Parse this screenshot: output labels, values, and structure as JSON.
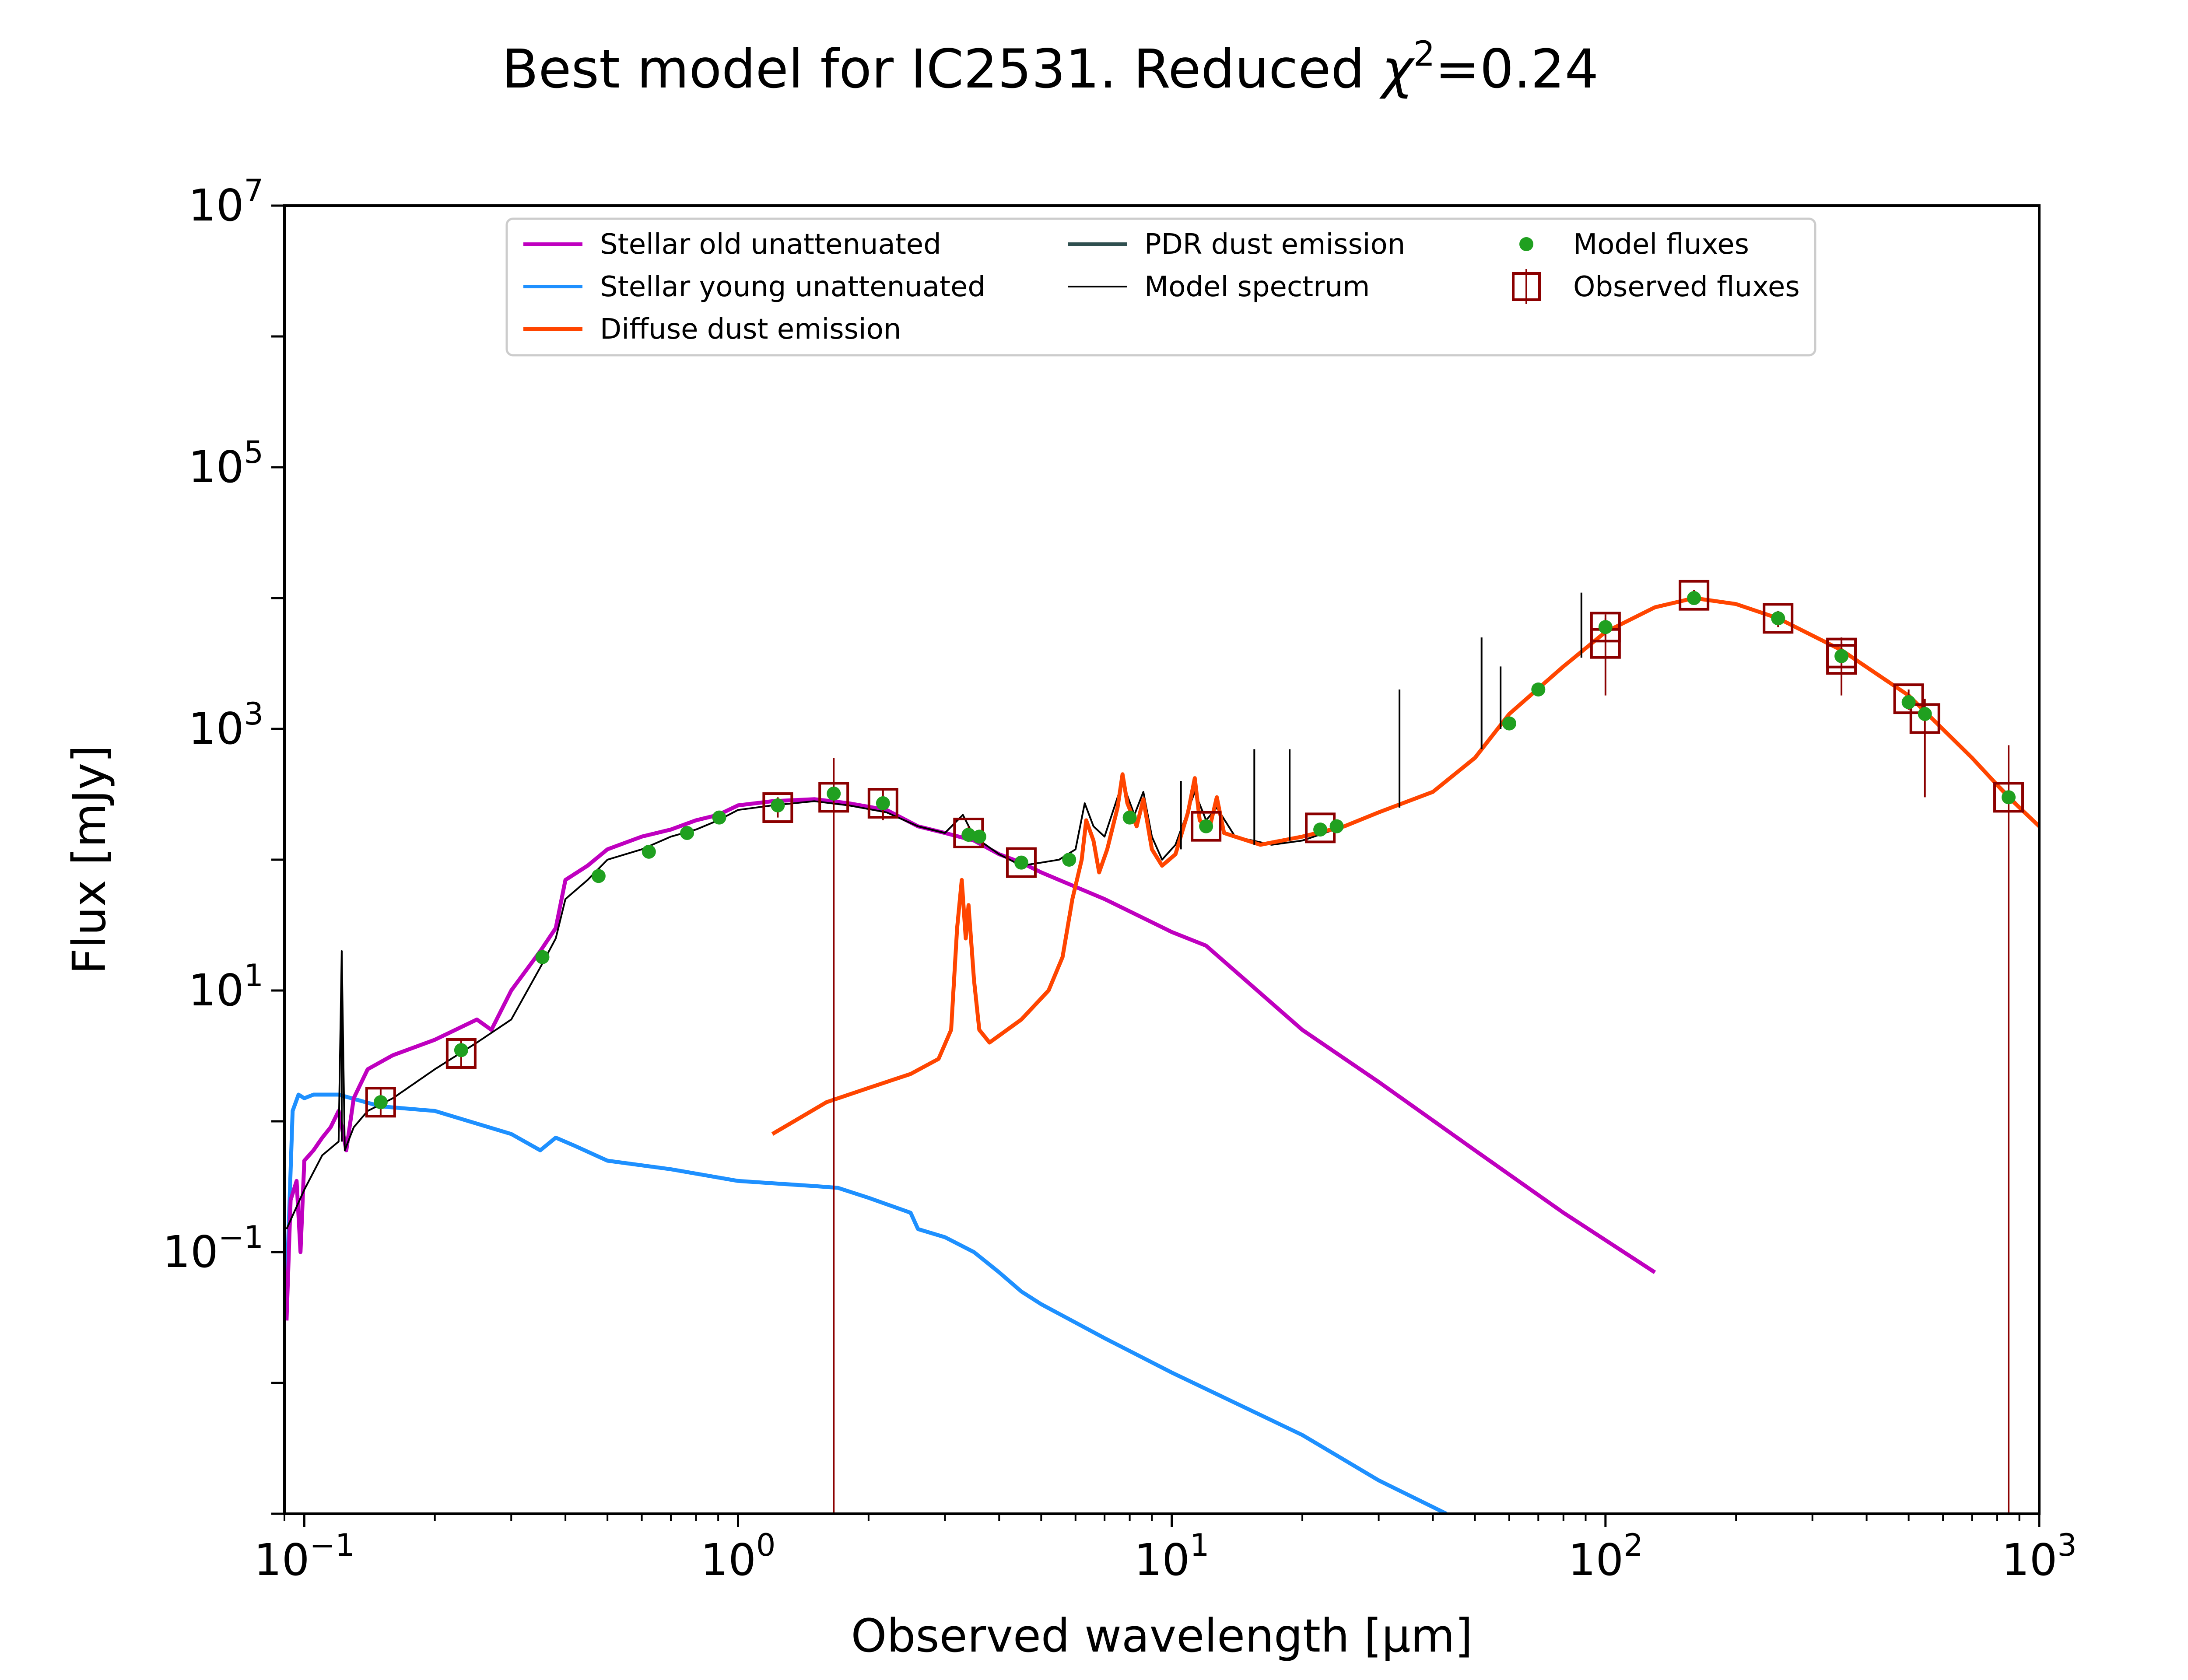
{
  "chart_data": {
    "type": "line",
    "title_prefix": "Best model for IC2531. Reduced ",
    "title_chi": "χ",
    "title_sup": "2",
    "title_suffix": "=0.24",
    "xlabel": "Observed wavelength [μm]",
    "ylabel": "Flux [mJy]",
    "x_scale": "log",
    "y_scale": "log",
    "xlim": [
      0.09,
      1000
    ],
    "ylim": [
      0.001,
      10000000
    ],
    "grid": false,
    "legend_position": "top-center",
    "x_ticks": [
      {
        "base": "10",
        "exp": "−1",
        "value": 0.1
      },
      {
        "base": "10",
        "exp": "0",
        "value": 1
      },
      {
        "base": "10",
        "exp": "1",
        "value": 10
      },
      {
        "base": "10",
        "exp": "2",
        "value": 100
      },
      {
        "base": "10",
        "exp": "3",
        "value": 1000
      }
    ],
    "y_ticks": [
      {
        "base": "10",
        "exp": "−1",
        "value": 0.1
      },
      {
        "base": "10",
        "exp": "1",
        "value": 10
      },
      {
        "base": "10",
        "exp": "3",
        "value": 1000
      },
      {
        "base": "10",
        "exp": "5",
        "value": 100000
      },
      {
        "base": "10",
        "exp": "7",
        "value": 10000000
      }
    ],
    "series": [
      {
        "name": "Stellar old unattenuated",
        "color": "#bf00bf",
        "kind": "line",
        "points": [
          [
            0.091,
            0.03
          ],
          [
            0.093,
            0.25
          ],
          [
            0.096,
            0.35
          ],
          [
            0.098,
            0.1
          ],
          [
            0.1,
            0.5
          ],
          [
            0.105,
            0.6
          ],
          [
            0.11,
            0.75
          ],
          [
            0.115,
            0.9
          ],
          [
            0.12,
            1.2
          ],
          [
            0.125,
            0.6
          ],
          [
            0.13,
            1.5
          ],
          [
            0.14,
            2.5
          ],
          [
            0.16,
            3.2
          ],
          [
            0.2,
            4.2
          ],
          [
            0.25,
            6
          ],
          [
            0.27,
            5
          ],
          [
            0.3,
            10
          ],
          [
            0.35,
            20
          ],
          [
            0.38,
            30
          ],
          [
            0.4,
            70
          ],
          [
            0.45,
            90
          ],
          [
            0.5,
            120
          ],
          [
            0.6,
            150
          ],
          [
            0.7,
            170
          ],
          [
            0.8,
            200
          ],
          [
            0.9,
            220
          ],
          [
            1.0,
            260
          ],
          [
            1.2,
            280
          ],
          [
            1.5,
            290
          ],
          [
            1.8,
            270
          ],
          [
            2.2,
            240
          ],
          [
            2.6,
            180
          ],
          [
            3.0,
            160
          ],
          [
            3.5,
            140
          ],
          [
            4.0,
            110
          ],
          [
            4.5,
            95
          ],
          [
            5,
            80
          ],
          [
            7,
            50
          ],
          [
            10,
            28
          ],
          [
            12,
            22
          ],
          [
            20,
            5
          ],
          [
            30,
            2
          ],
          [
            50,
            0.6
          ],
          [
            80,
            0.2
          ],
          [
            130,
            0.07
          ]
        ]
      },
      {
        "name": "Stellar young unattenuated",
        "color": "#1e90ff",
        "kind": "line",
        "points": [
          [
            0.091,
            0.05
          ],
          [
            0.094,
            1.2
          ],
          [
            0.097,
            1.6
          ],
          [
            0.1,
            1.5
          ],
          [
            0.105,
            1.6
          ],
          [
            0.12,
            1.6
          ],
          [
            0.15,
            1.3
          ],
          [
            0.2,
            1.2
          ],
          [
            0.3,
            0.8
          ],
          [
            0.35,
            0.6
          ],
          [
            0.38,
            0.75
          ],
          [
            0.42,
            0.65
          ],
          [
            0.5,
            0.5
          ],
          [
            0.7,
            0.43
          ],
          [
            1.0,
            0.35
          ],
          [
            1.5,
            0.32
          ],
          [
            1.7,
            0.31
          ],
          [
            2.0,
            0.26
          ],
          [
            2.5,
            0.2
          ],
          [
            2.6,
            0.15
          ],
          [
            3.0,
            0.13
          ],
          [
            3.5,
            0.1
          ],
          [
            4.0,
            0.07
          ],
          [
            4.5,
            0.05
          ],
          [
            5,
            0.04
          ],
          [
            7,
            0.022
          ],
          [
            10,
            0.012
          ],
          [
            20,
            0.004
          ],
          [
            30,
            0.0018
          ],
          [
            43,
            0.001
          ]
        ]
      },
      {
        "name": "Diffuse dust emission",
        "color": "#ff4500",
        "kind": "line",
        "points": [
          [
            1.2,
            0.8
          ],
          [
            1.6,
            1.4
          ],
          [
            2.0,
            1.8
          ],
          [
            2.5,
            2.3
          ],
          [
            2.9,
            3
          ],
          [
            3.1,
            5
          ],
          [
            3.2,
            30
          ],
          [
            3.28,
            70
          ],
          [
            3.35,
            25
          ],
          [
            3.4,
            45
          ],
          [
            3.5,
            12
          ],
          [
            3.6,
            5
          ],
          [
            3.8,
            4
          ],
          [
            4.5,
            6
          ],
          [
            5.2,
            10
          ],
          [
            5.6,
            18
          ],
          [
            5.9,
            50
          ],
          [
            6.2,
            100
          ],
          [
            6.35,
            200
          ],
          [
            6.6,
            140
          ],
          [
            6.8,
            80
          ],
          [
            7.1,
            120
          ],
          [
            7.5,
            250
          ],
          [
            7.7,
            450
          ],
          [
            7.9,
            270
          ],
          [
            8.3,
            180
          ],
          [
            8.6,
            290
          ],
          [
            9,
            120
          ],
          [
            9.5,
            90
          ],
          [
            10.2,
            110
          ],
          [
            10.9,
            230
          ],
          [
            11.3,
            420
          ],
          [
            11.6,
            200
          ],
          [
            12.2,
            170
          ],
          [
            12.7,
            300
          ],
          [
            13.2,
            160
          ],
          [
            14,
            150
          ],
          [
            16,
            130
          ],
          [
            20,
            150
          ],
          [
            25,
            180
          ],
          [
            30,
            230
          ],
          [
            40,
            330
          ],
          [
            50,
            600
          ],
          [
            60,
            1300
          ],
          [
            80,
            3000
          ],
          [
            100,
            5500
          ],
          [
            130,
            8500
          ],
          [
            160,
            10000
          ],
          [
            200,
            9000
          ],
          [
            250,
            7000
          ],
          [
            350,
            4000
          ],
          [
            500,
            1800
          ],
          [
            700,
            600
          ],
          [
            850,
            300
          ],
          [
            1000,
            180
          ]
        ]
      },
      {
        "name": "PDR dust emission",
        "color": "#2f4f4f",
        "kind": "line",
        "points": []
      },
      {
        "name": "Model spectrum",
        "color": "#000000",
        "kind": "line",
        "points": [
          [
            0.091,
            0.15
          ],
          [
            0.1,
            0.3
          ],
          [
            0.11,
            0.55
          ],
          [
            0.12,
            0.7
          ],
          [
            0.122,
            20
          ],
          [
            0.124,
            0.6
          ],
          [
            0.13,
            0.9
          ],
          [
            0.14,
            1.2
          ],
          [
            0.16,
            1.5
          ],
          [
            0.2,
            2.5
          ],
          [
            0.25,
            4
          ],
          [
            0.3,
            6
          ],
          [
            0.35,
            15
          ],
          [
            0.38,
            25
          ],
          [
            0.4,
            50
          ],
          [
            0.45,
            70
          ],
          [
            0.5,
            100
          ],
          [
            0.6,
            120
          ],
          [
            0.7,
            150
          ],
          [
            0.8,
            170
          ],
          [
            0.9,
            200
          ],
          [
            1.0,
            240
          ],
          [
            1.2,
            260
          ],
          [
            1.5,
            280
          ],
          [
            1.8,
            260
          ],
          [
            2.2,
            230
          ],
          [
            2.6,
            180
          ],
          [
            3.0,
            160
          ],
          [
            3.3,
            220
          ],
          [
            3.5,
            150
          ],
          [
            4.0,
            110
          ],
          [
            4.5,
            90
          ],
          [
            5,
            95
          ],
          [
            5.5,
            100
          ],
          [
            6,
            120
          ],
          [
            6.3,
            270
          ],
          [
            6.6,
            180
          ],
          [
            7,
            150
          ],
          [
            7.7,
            390
          ],
          [
            8.2,
            220
          ],
          [
            8.6,
            330
          ],
          [
            9,
            150
          ],
          [
            9.5,
            100
          ],
          [
            10.2,
            130
          ],
          [
            11.3,
            330
          ],
          [
            12,
            200
          ],
          [
            12.7,
            250
          ],
          [
            14,
            150
          ],
          [
            17,
            130
          ],
          [
            20,
            140
          ],
          [
            25,
            180
          ],
          [
            30,
            230
          ],
          [
            40,
            330
          ],
          [
            50,
            600
          ],
          [
            60,
            1300
          ],
          [
            80,
            3000
          ],
          [
            100,
            5500
          ],
          [
            130,
            8500
          ],
          [
            160,
            10000
          ],
          [
            200,
            9000
          ],
          [
            250,
            7000
          ],
          [
            350,
            4000
          ],
          [
            500,
            1800
          ],
          [
            700,
            600
          ],
          [
            1000,
            180
          ]
        ]
      }
    ],
    "emission_lines": [
      [
        0.122,
        0.7,
        20
      ],
      [
        10.5,
        120,
        400
      ],
      [
        15.5,
        130,
        700
      ],
      [
        18.7,
        140,
        700
      ],
      [
        33.5,
        250,
        2000
      ],
      [
        51.8,
        700,
        5000
      ],
      [
        57.3,
        1000,
        3000
      ],
      [
        88,
        3500,
        11000
      ]
    ],
    "model_fluxes": [
      [
        0.15,
        1.4
      ],
      [
        0.23,
        3.5
      ],
      [
        0.354,
        18
      ],
      [
        0.477,
        75
      ],
      [
        0.623,
        115
      ],
      [
        0.763,
        160
      ],
      [
        0.905,
        210
      ],
      [
        1.235,
        260
      ],
      [
        1.662,
        320
      ],
      [
        2.159,
        270
      ],
      [
        3.4,
        155
      ],
      [
        3.6,
        150
      ],
      [
        4.5,
        95
      ],
      [
        5.8,
        100
      ],
      [
        8.0,
        210
      ],
      [
        12,
        180
      ],
      [
        22,
        170
      ],
      [
        24,
        180
      ],
      [
        60,
        1100
      ],
      [
        70,
        2000
      ],
      [
        100,
        6000
      ],
      [
        160,
        10000
      ],
      [
        250,
        7000
      ],
      [
        350,
        3600
      ],
      [
        500,
        1600
      ],
      [
        545,
        1300
      ],
      [
        850,
        300
      ]
    ],
    "observed_fluxes": [
      [
        0.15,
        1.4,
        1.1,
        1.8
      ],
      [
        0.23,
        3.3,
        2.5,
        4.3
      ],
      [
        1.235,
        250,
        210,
        300
      ],
      [
        1.662,
        300,
        0.001,
        600
      ],
      [
        2.159,
        270,
        200,
        350
      ],
      [
        3.4,
        160,
        140,
        180
      ],
      [
        4.5,
        95,
        85,
        105
      ],
      [
        12,
        180,
        160,
        200
      ],
      [
        22,
        175,
        160,
        190
      ],
      [
        100,
        6000,
        5000,
        7500
      ],
      [
        100,
        4500,
        1800,
        7000
      ],
      [
        160,
        10500,
        9500,
        11500
      ],
      [
        250,
        7000,
        6000,
        8000
      ],
      [
        350,
        3800,
        3000,
        4600
      ],
      [
        350,
        3400,
        1800,
        5000
      ],
      [
        500,
        1700,
        1400,
        2000
      ],
      [
        545,
        1200,
        300,
        1700
      ],
      [
        850,
        300,
        0.001,
        750
      ]
    ],
    "legend": [
      {
        "label": "Stellar old unattenuated",
        "color": "#bf00bf",
        "marker": "line"
      },
      {
        "label": "Stellar young unattenuated",
        "color": "#1e90ff",
        "marker": "line"
      },
      {
        "label": "Diffuse dust emission",
        "color": "#ff4500",
        "marker": "line"
      },
      {
        "label": "PDR dust emission",
        "color": "#2f4f4f",
        "marker": "line"
      },
      {
        "label": "Model spectrum",
        "color": "#000000",
        "marker": "thin-line"
      },
      {
        "label": "Model fluxes",
        "color": "#20a020",
        "marker": "dot"
      },
      {
        "label": "Observed fluxes",
        "color": "#8b0000",
        "marker": "open-square-errorbar"
      }
    ]
  }
}
